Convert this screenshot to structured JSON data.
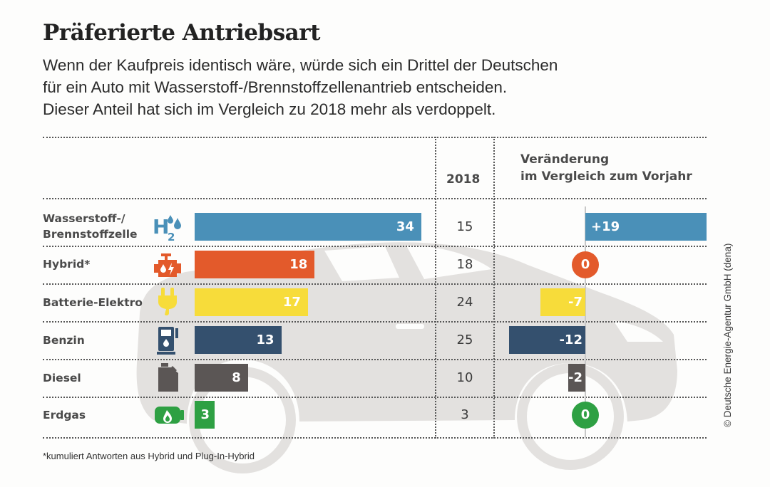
{
  "header": {
    "title": "Präferierte Antriebsart",
    "subtitle_lines": [
      "Wenn der Kaufpreis identisch wäre, würde sich ein Drittel der Deutschen",
      "für ein Auto mit Wasserstoff-/Brennstoffzellenantrieb entscheiden.",
      "Dieser Anteil hat sich im Vergleich zu 2018 mehr als verdoppelt."
    ]
  },
  "columns": {
    "year": "2018",
    "change_line1": "Veränderung",
    "change_line2": "im Vergleich zum Vorjahr"
  },
  "footnote": "*kumuliert Antworten aus Hybrid und Plug-In-Hybrid",
  "credit": "© Deutsche Energie-Agentur GmbH (dena)",
  "chart_data": {
    "type": "bar",
    "title": "Präferierte Antriebsart",
    "categories": [
      "Wasserstoff-/ Brennstoffzelle",
      "Hybrid*",
      "Batterie-Elektro",
      "Benzin",
      "Diesel",
      "Erdgas"
    ],
    "series": [
      {
        "name": "current",
        "values": [
          34,
          18,
          17,
          13,
          8,
          3
        ]
      },
      {
        "name": "2018",
        "values": [
          15,
          18,
          24,
          25,
          10,
          3
        ]
      },
      {
        "name": "Veränderung im Vergleich zum Vorjahr",
        "values": [
          19,
          0,
          -7,
          -12,
          -2,
          0
        ]
      }
    ],
    "change_labels": [
      "+19",
      "0",
      "-7",
      "-12",
      "-2",
      "0"
    ],
    "xlabel": "",
    "ylabel": "",
    "grid": false,
    "legend": "none"
  },
  "rows": [
    {
      "label_line1": "Wasserstoff-/",
      "label_line2": "Brennstoffzelle",
      "icon": "hydrogen-icon",
      "color": "#4a90b8",
      "value": 34,
      "y2018": 15,
      "change": 19,
      "change_label": "+19"
    },
    {
      "label_line1": "Hybrid*",
      "label_line2": "",
      "icon": "engine-icon",
      "color": "#e35a2b",
      "value": 18,
      "y2018": 18,
      "change": 0,
      "change_label": "0"
    },
    {
      "label_line1": "Batterie-Elektro",
      "label_line2": "",
      "icon": "plug-icon",
      "color": "#f7dc3a",
      "value": 17,
      "y2018": 24,
      "change": -7,
      "change_label": "-7"
    },
    {
      "label_line1": "Benzin",
      "label_line2": "",
      "icon": "fuel-pump-icon",
      "color": "#34506e",
      "value": 13,
      "y2018": 25,
      "change": -12,
      "change_label": "-12"
    },
    {
      "label_line1": "Diesel",
      "label_line2": "",
      "icon": "jerrycan-icon",
      "color": "#5b5655",
      "value": 8,
      "y2018": 10,
      "change": -2,
      "change_label": "-2"
    },
    {
      "label_line1": "Erdgas",
      "label_line2": "",
      "icon": "gas-cylinder-icon",
      "color": "#2ea043",
      "value": 3,
      "y2018": 3,
      "change": 0,
      "change_label": "0"
    }
  ]
}
